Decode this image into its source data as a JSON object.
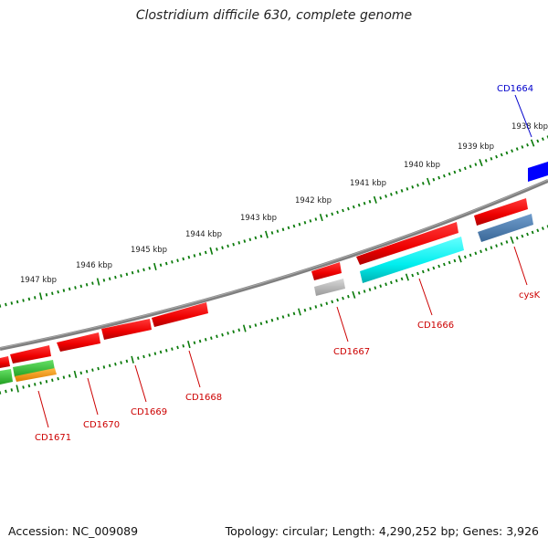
{
  "title": "Clostridium difficile 630, complete genome",
  "footer": {
    "accession": "Accession: NC_009089",
    "summary": "Topology: circular; Length: 4,290,252 bp; Genes: 3,926"
  },
  "colors": {
    "backbone": "#808080",
    "tick": "#0a7a0a",
    "gene_red": "#ff0000",
    "gene_cyan": "#00ffff",
    "gene_grey": "#b0b0b0",
    "gene_steelblue": "#4a7fb0",
    "gene_blue": "#0000ff",
    "gene_green": "#3ec83e",
    "gene_orange": "#ff9a00",
    "label_red": "#cc0000",
    "label_blue": "#0000cc"
  },
  "kbp_labels": [
    "1938 kbp",
    "1939 kbp",
    "1940 kbp",
    "1941 kbp",
    "1942 kbp",
    "1943 kbp",
    "1944 kbp",
    "1945 kbp",
    "1946 kbp",
    "1947 kbp"
  ],
  "gene_labels": [
    {
      "id": "cd1664",
      "text": "CD1664",
      "color": "blue"
    },
    {
      "id": "cysk",
      "text": "cysK",
      "color": "red"
    },
    {
      "id": "cd1666",
      "text": "CD1666",
      "color": "red"
    },
    {
      "id": "cd1667",
      "text": "CD1667",
      "color": "red"
    },
    {
      "id": "cd1668",
      "text": "CD1668",
      "color": "red"
    },
    {
      "id": "cd1669",
      "text": "CD1669",
      "color": "red"
    },
    {
      "id": "cd1670",
      "text": "CD1670",
      "color": "red"
    },
    {
      "id": "cd1671",
      "text": "CD1671",
      "color": "red"
    }
  ]
}
